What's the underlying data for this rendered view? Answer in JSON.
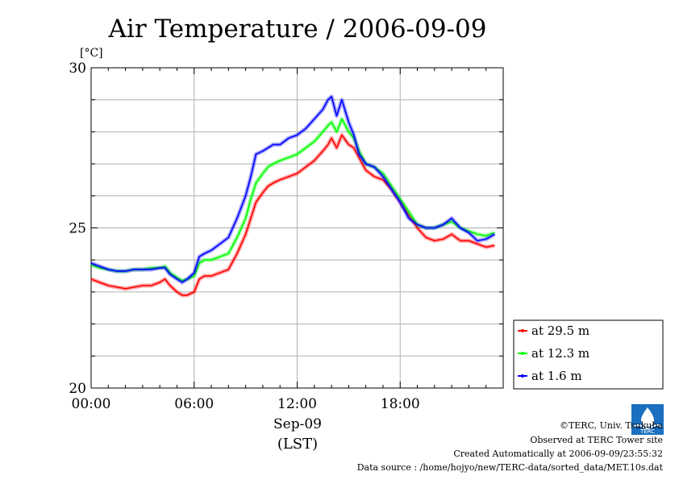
{
  "chart_data": {
    "type": "line",
    "title": "Air Temperature / 2006-09-09",
    "ylabel": "[°C]",
    "xlabel": "Sep-09",
    "xlabel2": "(LST)",
    "xlim": [
      0,
      24
    ],
    "ylim": [
      20,
      30
    ],
    "x_ticks": [
      0,
      6,
      12,
      18
    ],
    "x_tick_labels": [
      "00:00",
      "06:00",
      "12:00",
      "18:00"
    ],
    "y_ticks": [
      20,
      25,
      30
    ],
    "y_tick_labels": [
      "20",
      "25",
      "30"
    ],
    "grid": true,
    "legend_position": "bottom-right",
    "series": [
      {
        "name": "at 29.5 m",
        "color": "#ff0000",
        "x": [
          0,
          0.5,
          1,
          1.5,
          2,
          2.5,
          3,
          3.5,
          4,
          4.3,
          4.6,
          5,
          5.3,
          5.6,
          6,
          6.3,
          6.6,
          7,
          7.5,
          8,
          8.5,
          9,
          9.3,
          9.6,
          10,
          10.3,
          10.6,
          11,
          11.5,
          12,
          12.5,
          13,
          13.5,
          13.8,
          14,
          14.3,
          14.6,
          15,
          15.3,
          15.6,
          16,
          16.5,
          17,
          17.5,
          18,
          18.5,
          19,
          19.5,
          20,
          20.5,
          21,
          21.5,
          22,
          22.5,
          23,
          23.5
        ],
        "y": [
          23.4,
          23.3,
          23.2,
          23.15,
          23.1,
          23.15,
          23.2,
          23.2,
          23.3,
          23.4,
          23.2,
          23.0,
          22.9,
          22.9,
          23.0,
          23.4,
          23.5,
          23.5,
          23.6,
          23.7,
          24.2,
          24.8,
          25.3,
          25.8,
          26.1,
          26.3,
          26.4,
          26.5,
          26.6,
          26.7,
          26.9,
          27.1,
          27.4,
          27.6,
          27.8,
          27.5,
          27.9,
          27.6,
          27.5,
          27.2,
          26.8,
          26.6,
          26.5,
          26.2,
          25.8,
          25.4,
          25.0,
          24.7,
          24.6,
          24.65,
          24.8,
          24.6,
          24.6,
          24.5,
          24.4,
          24.45
        ]
      },
      {
        "name": "at 12.3 m",
        "color": "#00ff00",
        "x": [
          0,
          0.5,
          1,
          1.5,
          2,
          2.5,
          3,
          3.5,
          4,
          4.3,
          4.6,
          5,
          5.3,
          5.6,
          6,
          6.3,
          6.6,
          7,
          7.5,
          8,
          8.5,
          9,
          9.3,
          9.6,
          10,
          10.3,
          10.6,
          11,
          11.5,
          12,
          12.5,
          13,
          13.5,
          13.8,
          14,
          14.3,
          14.6,
          15,
          15.3,
          15.6,
          16,
          16.5,
          17,
          17.5,
          18,
          18.5,
          19,
          19.5,
          20,
          20.5,
          21,
          21.5,
          22,
          22.5,
          23,
          23.5
        ],
        "y": [
          23.85,
          23.75,
          23.7,
          23.65,
          23.65,
          23.7,
          23.7,
          23.75,
          23.75,
          23.8,
          23.6,
          23.45,
          23.35,
          23.4,
          23.5,
          23.9,
          24.0,
          24.0,
          24.1,
          24.2,
          24.7,
          25.3,
          25.9,
          26.4,
          26.7,
          26.9,
          27.0,
          27.1,
          27.2,
          27.3,
          27.5,
          27.7,
          28.0,
          28.2,
          28.3,
          28.0,
          28.4,
          28.0,
          27.8,
          27.4,
          27.0,
          26.9,
          26.7,
          26.3,
          25.9,
          25.5,
          25.1,
          25.0,
          25.0,
          25.1,
          25.2,
          25.0,
          24.9,
          24.8,
          24.75,
          24.85
        ]
      },
      {
        "name": "at 1.6 m",
        "color": "#0000ff",
        "x": [
          0,
          0.5,
          1,
          1.5,
          2,
          2.5,
          3,
          3.5,
          4,
          4.3,
          4.6,
          5,
          5.3,
          5.6,
          6,
          6.3,
          6.6,
          7,
          7.5,
          8,
          8.5,
          9,
          9.3,
          9.6,
          10,
          10.3,
          10.6,
          11,
          11.5,
          12,
          12.5,
          13,
          13.5,
          13.8,
          14,
          14.3,
          14.6,
          15,
          15.3,
          15.6,
          16,
          16.5,
          17,
          17.5,
          18,
          18.5,
          19,
          19.5,
          20,
          20.5,
          21,
          21.5,
          22,
          22.5,
          23,
          23.5
        ],
        "y": [
          23.9,
          23.8,
          23.7,
          23.65,
          23.65,
          23.7,
          23.7,
          23.7,
          23.75,
          23.75,
          23.55,
          23.4,
          23.3,
          23.4,
          23.6,
          24.1,
          24.2,
          24.3,
          24.5,
          24.7,
          25.3,
          26.0,
          26.6,
          27.3,
          27.4,
          27.5,
          27.6,
          27.6,
          27.8,
          27.9,
          28.1,
          28.4,
          28.7,
          29.0,
          29.1,
          28.5,
          29.0,
          28.3,
          27.9,
          27.3,
          27.0,
          26.9,
          26.6,
          26.2,
          25.8,
          25.3,
          25.1,
          25.0,
          25.0,
          25.1,
          25.3,
          25.0,
          24.85,
          24.6,
          24.65,
          24.8
        ]
      }
    ]
  },
  "footer": {
    "copyright": "©TERC, Univ. Tsukuba",
    "site": "Observed at TERC Tower site",
    "created": "Created Automatically at 2006-09-09/23:55:32",
    "source": "Data source : /home/hojyo/new/TERC-data/sorted_data/MET.10s.dat"
  },
  "logo": {
    "icon": "terc-logo-icon",
    "text": "TERC"
  }
}
